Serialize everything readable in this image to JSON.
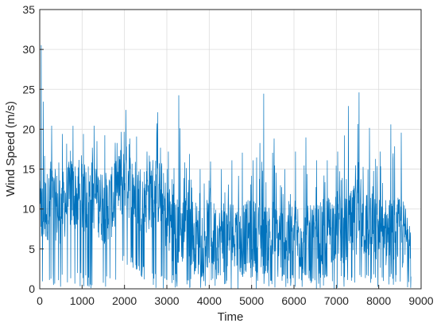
{
  "chart_data": {
    "type": "line",
    "title": "",
    "xlabel": "Time",
    "ylabel": "Wind Speed (m/s)",
    "xlim": [
      0,
      9000
    ],
    "ylim": [
      0,
      35
    ],
    "x_ticks": [
      0,
      1000,
      2000,
      3000,
      4000,
      5000,
      6000,
      7000,
      8000,
      9000
    ],
    "y_ticks": [
      0,
      5,
      10,
      15,
      20,
      25,
      30,
      35
    ],
    "grid": true,
    "line_color": "#0072BD",
    "x_end": 8760,
    "series": [
      {
        "name": "",
        "x": [
          0,
          250,
          500,
          750,
          1000,
          1250,
          1500,
          1750,
          2000,
          2250,
          2500,
          2750,
          3000,
          3250,
          3500,
          3750,
          4000,
          4250,
          4500,
          4750,
          5000,
          5250,
          5500,
          5750,
          6000,
          6250,
          6500,
          6750,
          7000,
          7250,
          7500,
          7750,
          8000,
          8250,
          8500,
          8750
        ],
        "y": [
          9,
          11,
          10,
          12,
          11,
          12,
          10,
          11,
          14,
          12,
          11,
          13,
          9,
          7,
          8,
          6,
          7,
          6,
          7,
          6,
          7,
          6,
          7,
          6,
          7,
          6,
          6,
          7,
          8,
          7,
          9,
          8,
          7,
          7,
          7,
          6
        ],
        "y_min": [
          0,
          0,
          0,
          0,
          0,
          0,
          0,
          0,
          3,
          2,
          1,
          0,
          0,
          0,
          0,
          0,
          0,
          0,
          0,
          0,
          0,
          0,
          0,
          0,
          0,
          0,
          0,
          0,
          0,
          0,
          0,
          0,
          0,
          0,
          0,
          0
        ],
        "y_max": [
          32.2,
          20.6,
          19.4,
          20.6,
          19.4,
          20.6,
          19.4,
          18.3,
          22.9,
          19.4,
          17.2,
          22.9,
          17.2,
          25.3,
          17.2,
          15.0,
          16.1,
          15.0,
          16.1,
          17.2,
          16.1,
          25.3,
          19.4,
          15.0,
          17.2,
          19.4,
          16.1,
          16.1,
          17.2,
          22.9,
          25.3,
          20.6,
          17.2,
          20.6,
          20.6,
          12.6
        ]
      }
    ]
  }
}
